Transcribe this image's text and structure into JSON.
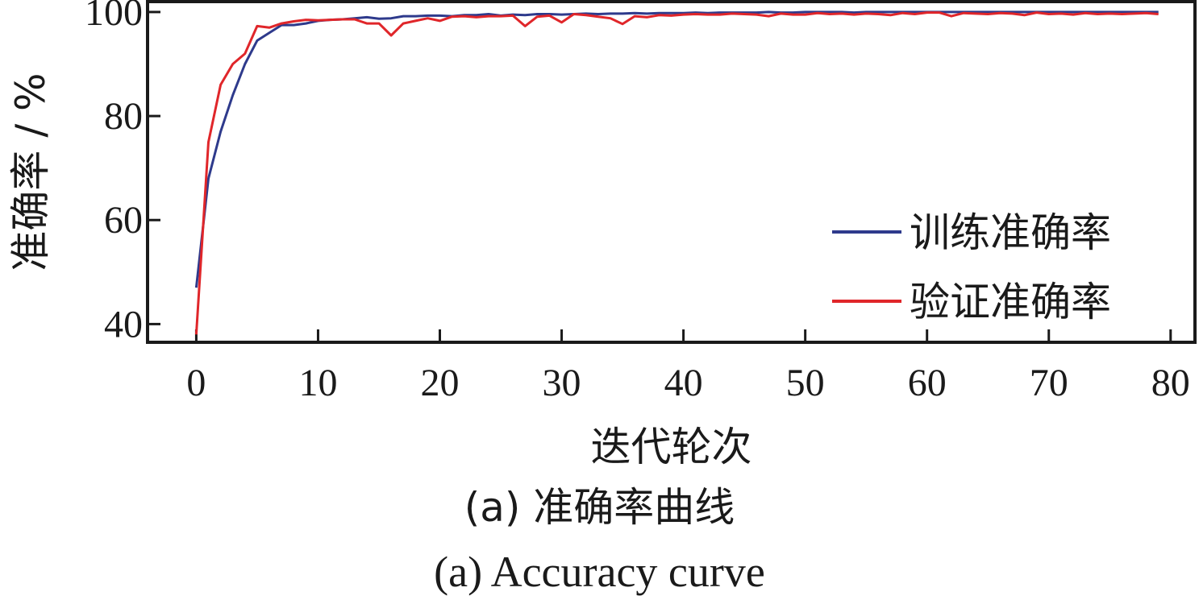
{
  "chart_data": {
    "type": "line",
    "xlabel": "迭代轮次",
    "ylabel": "准确率 / %",
    "xlim": [
      -4,
      82
    ],
    "ylim": [
      36.5,
      102
    ],
    "xticks": [
      0,
      10,
      20,
      30,
      40,
      50,
      60,
      70,
      80
    ],
    "yticks": [
      40,
      60,
      80,
      100
    ],
    "grid": false,
    "legend_position": "right",
    "series": [
      {
        "name": "训练准确率",
        "color": "#2e3a8c",
        "x": [
          0,
          1,
          2,
          3,
          4,
          5,
          6,
          7,
          8,
          9,
          10,
          11,
          12,
          13,
          14,
          15,
          16,
          17,
          18,
          19,
          20,
          21,
          22,
          23,
          24,
          25,
          26,
          27,
          28,
          29,
          30,
          31,
          32,
          33,
          34,
          35,
          36,
          37,
          38,
          39,
          40,
          41,
          42,
          43,
          44,
          45,
          46,
          47,
          48,
          49,
          50,
          51,
          52,
          53,
          54,
          55,
          56,
          57,
          58,
          59,
          60,
          61,
          62,
          63,
          64,
          65,
          66,
          67,
          68,
          69,
          70,
          71,
          72,
          73,
          74,
          75,
          76,
          77,
          78,
          79
        ],
        "y": [
          47,
          68,
          77,
          84,
          90,
          94.5,
          96,
          97.5,
          97.5,
          97.8,
          98.3,
          98.5,
          98.6,
          98.8,
          99,
          98.7,
          98.8,
          99.2,
          99.2,
          99.3,
          99.3,
          99.2,
          99.4,
          99.4,
          99.6,
          99.3,
          99.5,
          99.4,
          99.6,
          99.6,
          99.5,
          99.6,
          99.7,
          99.6,
          99.7,
          99.7,
          99.8,
          99.7,
          99.8,
          99.8,
          99.8,
          99.9,
          99.8,
          99.9,
          99.9,
          99.9,
          99.9,
          100,
          99.9,
          99.9,
          100,
          100,
          100,
          100,
          99.9,
          100,
          100,
          100,
          100,
          100,
          100,
          100,
          100,
          100,
          100,
          100,
          100,
          100,
          100,
          100,
          100,
          100,
          100,
          100,
          100,
          100,
          100,
          100,
          100,
          100
        ]
      },
      {
        "name": "验证准确率",
        "color": "#e0262a",
        "x": [
          0,
          1,
          2,
          3,
          4,
          5,
          6,
          7,
          8,
          9,
          10,
          11,
          12,
          13,
          14,
          15,
          16,
          17,
          18,
          19,
          20,
          21,
          22,
          23,
          24,
          25,
          26,
          27,
          28,
          29,
          30,
          31,
          32,
          33,
          34,
          35,
          36,
          37,
          38,
          39,
          40,
          41,
          42,
          43,
          44,
          45,
          46,
          47,
          48,
          49,
          50,
          51,
          52,
          53,
          54,
          55,
          56,
          57,
          58,
          59,
          60,
          61,
          62,
          63,
          64,
          65,
          66,
          67,
          68,
          69,
          70,
          71,
          72,
          73,
          74,
          75,
          76,
          77,
          78,
          79
        ],
        "y": [
          38,
          75,
          86,
          90,
          92,
          97.3,
          97,
          97.8,
          98.2,
          98.5,
          98.4,
          98.5,
          98.6,
          98.6,
          97.8,
          97.8,
          95.5,
          97.8,
          98.3,
          98.8,
          98.3,
          99.1,
          99.2,
          99,
          99.2,
          99.2,
          99.3,
          97.3,
          99.1,
          99.3,
          98,
          99.6,
          99.4,
          99.1,
          98.8,
          97.7,
          99.2,
          99,
          99.4,
          99.3,
          99.5,
          99.6,
          99.5,
          99.5,
          99.7,
          99.6,
          99.5,
          99.2,
          99.7,
          99.5,
          99.5,
          99.8,
          99.6,
          99.7,
          99.5,
          99.7,
          99.6,
          99.4,
          99.8,
          99.6,
          99.9,
          99.9,
          99.2,
          99.8,
          99.7,
          99.6,
          99.8,
          99.7,
          99.4,
          99.9,
          99.6,
          99.7,
          99.5,
          99.8,
          99.6,
          99.7,
          99.6,
          99.7,
          99.8,
          99.6
        ]
      }
    ]
  },
  "captions": {
    "zh": "(a)  准确率曲线",
    "en": "(a)  Accuracy curve"
  }
}
